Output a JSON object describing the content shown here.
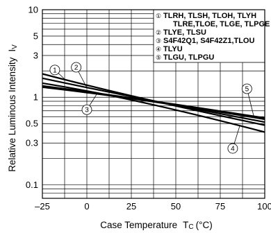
{
  "chart_data": {
    "type": "line",
    "xlabel": "Case Temperature",
    "xlabel_symbol": "T",
    "xlabel_sub": "C",
    "xlabel_unit": "(°C)",
    "ylabel": "Relative Luminous Intensity",
    "ylabel_symbol": "I",
    "ylabel_sub": "V",
    "xlim": [
      -25,
      100
    ],
    "ylim": [
      0.07,
      10
    ],
    "yscale": "log",
    "grid": true,
    "x_ticks": [
      {
        "value": -25,
        "label": "–25"
      },
      {
        "value": 0,
        "label": "0"
      },
      {
        "value": 25,
        "label": "25"
      },
      {
        "value": 50,
        "label": "50"
      },
      {
        "value": 75,
        "label": "75"
      },
      {
        "value": 100,
        "label": "100"
      }
    ],
    "y_ticks": [
      {
        "value": 10,
        "label": "10"
      },
      {
        "value": 5,
        "label": "5"
      },
      {
        "value": 3,
        "label": "3"
      },
      {
        "value": 1,
        "label": "1"
      },
      {
        "value": 0.5,
        "label": "0.5"
      },
      {
        "value": 0.3,
        "label": "0.3"
      },
      {
        "value": 0.1,
        "label": "0.1"
      }
    ],
    "legend_placement": "top-right",
    "legend": [
      {
        "num": "①",
        "lines": [
          "TLRH, TLSH, TLOH, TLYH",
          "TLRE,TLOE, TLGE, TLPGE"
        ]
      },
      {
        "num": "②",
        "lines": [
          "TLYE, TLSU"
        ]
      },
      {
        "num": "③",
        "lines": [
          "S4F42Q1, S4F42Z1,TLOU"
        ]
      },
      {
        "num": "④",
        "lines": [
          "TLYU"
        ]
      },
      {
        "num": "⑤",
        "lines": [
          "TLGU, TLPGU"
        ]
      }
    ],
    "series": [
      {
        "name": "①",
        "x": [
          -25,
          25,
          100
        ],
        "y": [
          1.85,
          1.0,
          0.48
        ]
      },
      {
        "name": "②",
        "x": [
          -25,
          25,
          100
        ],
        "y": [
          1.65,
          1.0,
          0.52
        ]
      },
      {
        "name": "③",
        "x": [
          -25,
          25,
          100
        ],
        "y": [
          1.35,
          1.0,
          0.58
        ]
      },
      {
        "name": "④",
        "x": [
          -25,
          25,
          100
        ],
        "y": [
          1.45,
          1.0,
          0.4
        ]
      },
      {
        "name": "⑤",
        "x": [
          -25,
          25,
          100
        ],
        "y": [
          1.3,
          1.0,
          0.56
        ]
      }
    ],
    "callouts": [
      {
        "label": "①",
        "x": -18,
        "y": 2.05
      },
      {
        "label": "②",
        "x": -6,
        "y": 2.2
      },
      {
        "label": "③",
        "x": 0,
        "y": 0.72
      },
      {
        "label": "④",
        "x": 82,
        "y": 0.26
      },
      {
        "label": "⑤",
        "x": 90,
        "y": 1.25
      }
    ]
  }
}
